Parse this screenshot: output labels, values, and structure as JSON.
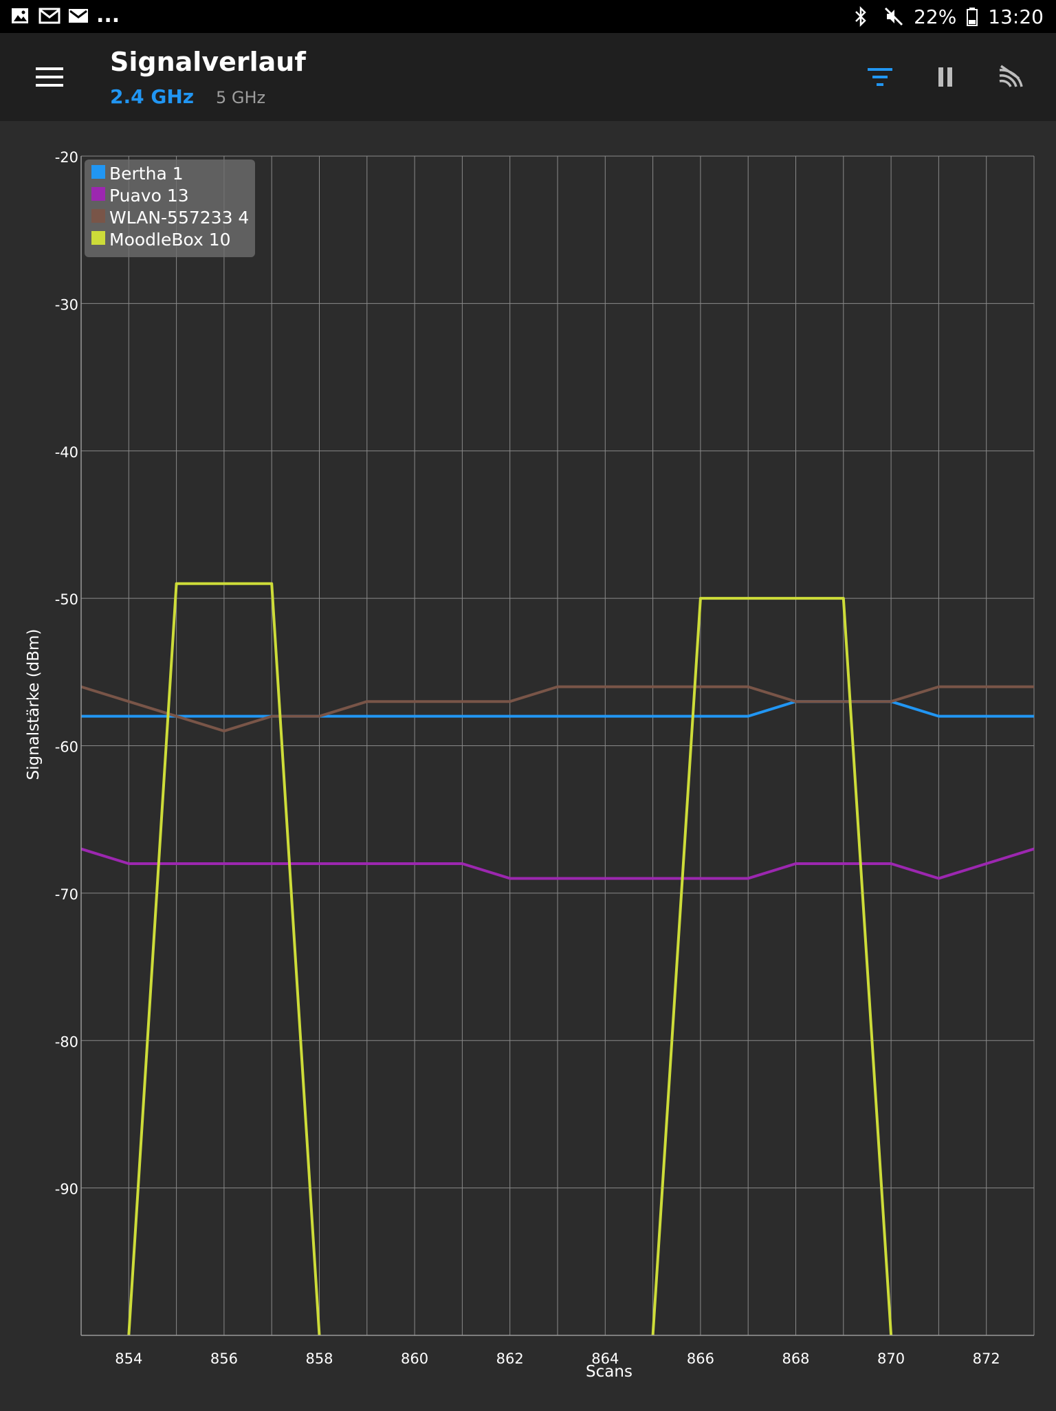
{
  "status_bar": {
    "notification_icons": [
      "image-icon",
      "mail-icon",
      "mail-filled-icon"
    ],
    "more_indicator": "...",
    "system_icons": [
      "bluetooth-icon",
      "mute-icon"
    ],
    "battery": "22%",
    "time": "13:20"
  },
  "app_bar": {
    "title": "Signalverlauf",
    "band_selected": "2.4 GHz",
    "band_other": "5 GHz",
    "actions": [
      "filter-icon",
      "pause-icon",
      "wifi-off-icon"
    ],
    "accent_color": "#2196f3"
  },
  "chart_data": {
    "type": "line",
    "xlabel": "Scans",
    "ylabel": "Signalstärke (dBm)",
    "xlim": [
      853,
      873
    ],
    "ylim": [
      -100,
      -20
    ],
    "x_ticks": [
      854,
      856,
      858,
      860,
      862,
      864,
      866,
      868,
      870,
      872
    ],
    "y_ticks": [
      -20,
      -30,
      -40,
      -50,
      -60,
      -70,
      -80,
      -90
    ],
    "grid": true,
    "legend_position": "top-left",
    "x": [
      853,
      854,
      855,
      856,
      857,
      858,
      859,
      860,
      861,
      862,
      863,
      864,
      865,
      866,
      867,
      868,
      869,
      870,
      871,
      872,
      873
    ],
    "series": [
      {
        "name": "Bertha 1",
        "color": "#2196f3",
        "values": [
          -58,
          -58,
          -58,
          -58,
          -58,
          -58,
          -58,
          -58,
          -58,
          -58,
          -58,
          -58,
          -58,
          -58,
          -58,
          -57,
          -57,
          -57,
          -58,
          -58,
          -58
        ]
      },
      {
        "name": "Puavo 13",
        "color": "#9c27b0",
        "values": [
          -67,
          -68,
          -68,
          -68,
          -68,
          -68,
          -68,
          -68,
          -68,
          -69,
          -69,
          -69,
          -69,
          -69,
          -69,
          -68,
          -68,
          -68,
          -69,
          -68,
          -67
        ]
      },
      {
        "name": "WLAN-557233 4",
        "color": "#795548",
        "values": [
          -56,
          -57,
          -58,
          -59,
          -58,
          -58,
          -57,
          -57,
          -57,
          -57,
          -56,
          -56,
          -56,
          -56,
          -56,
          -57,
          -57,
          -57,
          -56,
          -56,
          -56
        ]
      },
      {
        "name": "MoodleBox 10",
        "color": "#cddc39",
        "values": [
          null,
          -100,
          -49,
          -49,
          -49,
          -100,
          null,
          null,
          null,
          null,
          null,
          null,
          -100,
          -50,
          -50,
          -50,
          -50,
          -100,
          null,
          null,
          null
        ]
      }
    ]
  }
}
